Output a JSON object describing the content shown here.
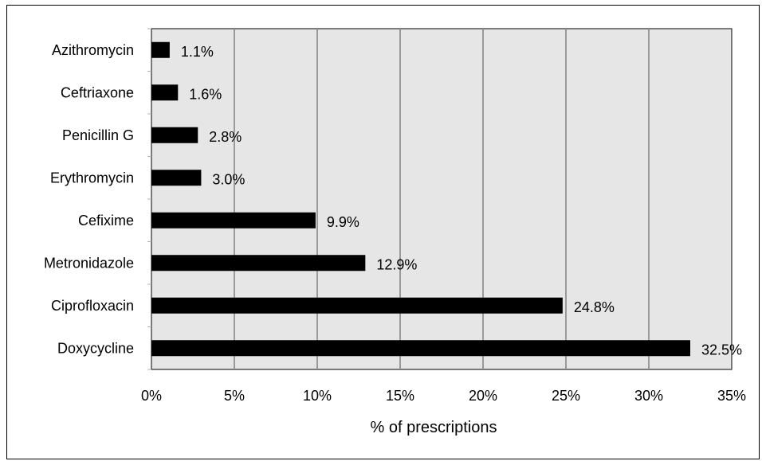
{
  "chart_data": {
    "type": "bar",
    "orientation": "horizontal",
    "categories": [
      "Azithromycin",
      "Ceftriaxone",
      "Penicillin G",
      "Erythromycin",
      "Cefixime",
      "Metronidazole",
      "Ciprofloxacin",
      "Doxycycline"
    ],
    "values": [
      1.1,
      1.6,
      2.8,
      3.0,
      9.9,
      12.9,
      24.8,
      32.5
    ],
    "data_labels": [
      "1.1%",
      "1.6%",
      "2.8%",
      "3.0%",
      "9.9%",
      "12.9%",
      "24.8%",
      "32.5%"
    ],
    "xlabel": "% of prescriptions",
    "ylabel": "",
    "title": "",
    "xlim": [
      0,
      35
    ],
    "xticks": [
      0,
      5,
      10,
      15,
      20,
      25,
      30,
      35
    ],
    "xtick_labels": [
      "0%",
      "5%",
      "10%",
      "15%",
      "20%",
      "25%",
      "30%",
      "35%"
    ],
    "grid": "vertical",
    "legend": "none",
    "colors": {
      "bar": "#000000",
      "plot_background": "#e6e6e6",
      "gridline": "#808080"
    }
  }
}
